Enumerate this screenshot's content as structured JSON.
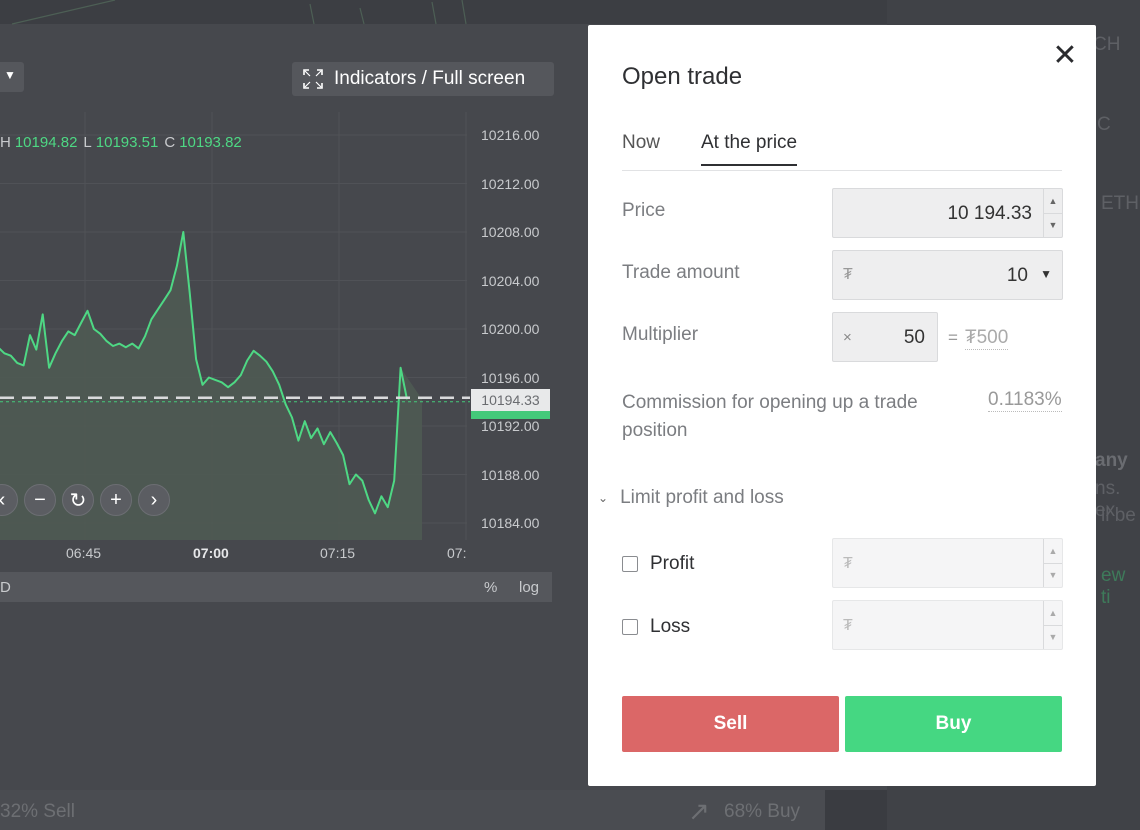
{
  "chart": {
    "indicators_label": "Indicators / Full screen",
    "ohlc": {
      "h_label": "H",
      "h_value": "10194.82",
      "l_label": "L",
      "l_value": "10193.51",
      "c_label": "C",
      "c_value": "10193.82"
    },
    "y_ticks": [
      "10216.00",
      "10212.00",
      "10208.00",
      "10204.00",
      "10200.00",
      "10196.00",
      "10192.00",
      "10188.00",
      "10184.00"
    ],
    "x_ticks": [
      "06:45",
      "07:00",
      "07:15",
      "07:"
    ],
    "current_price": "10194.33",
    "footer_left": "D",
    "footer_pct": "%",
    "footer_log": "log",
    "series": [
      10198.5,
      10198.0,
      10197.8,
      10197.2,
      10197.0,
      10199.5,
      10198.3,
      10201.2,
      10196.8,
      10198.0,
      10199.0,
      10199.8,
      10199.5,
      10200.5,
      10201.5,
      10200.0,
      10199.6,
      10199.0,
      10198.6,
      10198.8,
      10198.5,
      10198.8,
      10198.4,
      10199.4,
      10200.8,
      10201.6,
      10202.4,
      10203.2,
      10205.2,
      10208.0,
      10203.0,
      10197.5,
      10195.4,
      10196.0,
      10195.8,
      10195.6,
      10195.2,
      10195.6,
      10196.2,
      10197.4,
      10198.2,
      10197.8,
      10197.3,
      10196.5,
      10195.4,
      10193.8,
      10192.7,
      10190.8,
      10192.4,
      10191.0,
      10191.8,
      10190.5,
      10191.5,
      10190.6,
      10189.6,
      10187.2,
      10188.0,
      10187.5,
      10185.9,
      10184.8,
      10186.2,
      10185.3,
      10187.5,
      10196.8,
      10194.2
    ],
    "y_min": 10182.0,
    "y_max": 10218.0
  },
  "bottom_bar": {
    "sell": "32% Sell",
    "buy": "68% Buy"
  },
  "faded_right": [
    "CH",
    "C",
    "ETH",
    "any",
    "ns. ex",
    "ll be",
    "ew ti"
  ],
  "modal": {
    "title": "Open trade",
    "close": "✕",
    "tabs": [
      "Now",
      "At the price"
    ],
    "price_label": "Price",
    "price_value": "10 194.33",
    "amount_label": "Trade amount",
    "amount_currency": "₮",
    "amount_value": "10",
    "multiplier_label": "Multiplier",
    "multiplier_prefix": "×",
    "multiplier_value": "50",
    "multiplier_result_eq": "=",
    "multiplier_result": "₮500",
    "commission_label": "Commission for opening up a trade position",
    "commission_value": "0.1183%",
    "limit_label": "Limit profit and loss",
    "profit_label": "Profit",
    "loss_label": "Loss",
    "currency_symbol": "₮",
    "sell_label": "Sell",
    "buy_label": "Buy"
  },
  "colors": {
    "sell": "#db6767",
    "buy": "#45d782",
    "line": "#4ed884"
  }
}
